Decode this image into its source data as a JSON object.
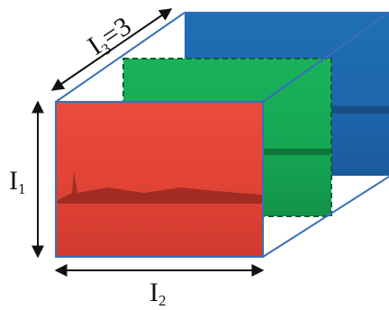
{
  "labels": {
    "depth": {
      "symbol": "I",
      "index": "3",
      "suffix": "=3"
    },
    "height": {
      "symbol": "I",
      "index": "1"
    },
    "width": {
      "symbol": "I",
      "index": "2"
    }
  }
}
